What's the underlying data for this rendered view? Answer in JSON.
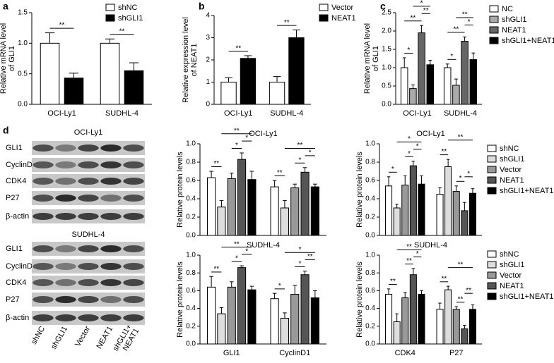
{
  "panel_labels": [
    "a",
    "b",
    "c",
    "d"
  ],
  "blot": {
    "sections": [
      {
        "title": "OCI-Ly1",
        "rows": [
          "GLI1",
          "CyclinD1",
          "CDK4",
          "P27",
          "β-actin"
        ]
      },
      {
        "title": "SUDHL-4",
        "rows": [
          "GLI1",
          "CyclinD1",
          "CDK4",
          "P27",
          "β-actin"
        ]
      }
    ],
    "lanes": [
      [
        "shNC"
      ],
      [
        "shGLI1"
      ],
      [
        "Vector"
      ],
      [
        "NEAT1"
      ],
      [
        "shGLI1+",
        "NEAT1"
      ]
    ]
  },
  "chart_data": [
    {
      "type": "bar",
      "y_label": [
        "Relative mRNA level",
        "of GLI1"
      ],
      "categories": [
        "OCI-Ly1",
        "SUDHL-4"
      ],
      "series": [
        {
          "name": "shNC",
          "color": "#ffffff",
          "values": [
            1.0,
            1.0
          ],
          "errors": [
            0.17,
            0.07
          ]
        },
        {
          "name": "shGLI1",
          "color": "#000000",
          "values": [
            0.43,
            0.55
          ],
          "errors": [
            0.08,
            0.13
          ]
        }
      ],
      "ylim": [
        0,
        1.5
      ],
      "yticks": [
        {
          "value": 0,
          "label": "0.0"
        },
        {
          "value": 0.5,
          "label": "0.5"
        },
        {
          "value": 1,
          "label": "1.0"
        },
        {
          "value": 1.5,
          "label": "1.5"
        }
      ],
      "legend": "upper right",
      "annotations": [
        "**",
        "**"
      ]
    },
    {
      "type": "bar",
      "y_label": [
        "Relative expression level",
        "of NEAT1"
      ],
      "categories": [
        "OCI-Ly1",
        "SUDHL-4"
      ],
      "series": [
        {
          "name": "Vector",
          "color": "#ffffff",
          "values": [
            1.0,
            1.0
          ],
          "errors": [
            0.2,
            0.25
          ]
        },
        {
          "name": "NEAT1",
          "color": "#000000",
          "values": [
            2.07,
            3.0
          ],
          "errors": [
            0.12,
            0.35
          ]
        }
      ],
      "ylim": [
        0,
        4
      ],
      "yticks": [
        0,
        1,
        2,
        3,
        4
      ],
      "legend": "upper right",
      "annotations": [
        "**",
        "**"
      ]
    },
    {
      "type": "bar",
      "y_label": [
        "Relative mRNA level",
        "of GLI1"
      ],
      "categories": [
        "OCI-Ly1",
        "SUDHL-4"
      ],
      "series": [
        {
          "name": "NC",
          "color": "#ffffff",
          "values": [
            1.0,
            1.0
          ],
          "errors": [
            0.27,
            0.1
          ]
        },
        {
          "name": "shGLI1",
          "color": "#aaaaaa",
          "values": [
            0.43,
            0.52
          ],
          "errors": [
            0.1,
            0.17
          ]
        },
        {
          "name": "NEAT1",
          "color": "#666666",
          "values": [
            1.95,
            1.72
          ],
          "errors": [
            0.2,
            0.12
          ]
        },
        {
          "name": "shGLI1+NEAT1",
          "color": "#000000",
          "values": [
            1.08,
            1.22
          ],
          "errors": [
            0.12,
            0.18
          ]
        }
      ],
      "ylim": [
        0,
        2.5
      ],
      "yticks": [
        {
          "value": 0,
          "label": "0.0"
        },
        {
          "value": 0.5,
          "label": "0.5"
        },
        {
          "value": 1,
          "label": "1.0"
        },
        {
          "value": 1.5,
          "label": "1.5"
        },
        {
          "value": 2,
          "label": "2.0"
        },
        {
          "value": 2.5,
          "label": "2.5"
        }
      ],
      "legend": "right",
      "annotations": [
        "*",
        "**",
        "**",
        "*",
        "*",
        "**",
        "*",
        "**"
      ]
    },
    {
      "type": "bar",
      "title": "OCI-Ly1",
      "y_label": [
        "Relative protein levels"
      ],
      "categories": [
        null,
        null
      ],
      "series": [
        {
          "color": "#ffffff",
          "values": [
            0.63,
            0.53
          ],
          "errors": [
            0.07,
            0.07
          ]
        },
        {
          "color": "#dddddd",
          "values": [
            0.31,
            0.3
          ],
          "errors": [
            0.07,
            0.08
          ]
        },
        {
          "color": "#999999",
          "values": [
            0.62,
            0.52
          ],
          "errors": [
            0.06,
            0.04
          ]
        },
        {
          "color": "#555555",
          "values": [
            0.83,
            0.69
          ],
          "errors": [
            0.07,
            0.05
          ]
        },
        {
          "color": "#000000",
          "values": [
            0.61,
            0.53
          ],
          "errors": [
            0.09,
            0.03
          ]
        }
      ],
      "ylim": [
        0,
        1
      ],
      "yticks": [
        {
          "value": 0,
          "label": "0.0"
        },
        {
          "value": 0.2,
          "label": "0.2"
        },
        {
          "value": 0.4,
          "label": "0.4"
        },
        {
          "value": 0.6,
          "label": "0.6"
        },
        {
          "value": 0.8,
          "label": "0.8"
        },
        {
          "value": 1,
          "label": "1.0"
        }
      ],
      "annotations": [
        "**",
        "*",
        "*",
        "**",
        "**",
        "*",
        "*",
        "**"
      ]
    },
    {
      "type": "bar",
      "title": "OCI-Ly1",
      "y_label": [
        "Relative protein levels"
      ],
      "categories": [
        null,
        null
      ],
      "series": [
        {
          "name": "shNC",
          "color": "#ffffff",
          "values": [
            0.54,
            0.45
          ],
          "errors": [
            0.1,
            0.07
          ]
        },
        {
          "name": "shGLI1",
          "color": "#dddddd",
          "values": [
            0.3,
            0.75
          ],
          "errors": [
            0.04,
            0.08
          ]
        },
        {
          "name": "Vector",
          "color": "#999999",
          "values": [
            0.55,
            0.48
          ],
          "errors": [
            0.1,
            0.06
          ]
        },
        {
          "name": "NEAT1",
          "color": "#555555",
          "values": [
            0.76,
            0.27
          ],
          "errors": [
            0.05,
            0.09
          ]
        },
        {
          "name": "shGLI1+NEAT1",
          "color": "#000000",
          "values": [
            0.56,
            0.46
          ],
          "errors": [
            0.09,
            0.05
          ]
        }
      ],
      "ylim": [
        0,
        1
      ],
      "yticks": [
        {
          "value": 0,
          "label": "0.0"
        },
        {
          "value": 0.2,
          "label": "0.2"
        },
        {
          "value": 0.4,
          "label": "0.4"
        },
        {
          "value": 0.6,
          "label": "0.6"
        },
        {
          "value": 0.8,
          "label": "0.8"
        },
        {
          "value": 1,
          "label": "1.0"
        }
      ],
      "legend": "right",
      "annotations": [
        "*",
        "*",
        "*",
        "*",
        "**",
        "*",
        "*",
        "**"
      ]
    },
    {
      "type": "bar",
      "title": "SUDHL-4",
      "y_label": [
        "Relative protein levels"
      ],
      "categories": [
        "GLI1",
        "CyclinD1"
      ],
      "series": [
        {
          "color": "#ffffff",
          "values": [
            0.64,
            0.51
          ],
          "errors": [
            0.12,
            0.06
          ]
        },
        {
          "color": "#dddddd",
          "values": [
            0.34,
            0.29
          ],
          "errors": [
            0.07,
            0.06
          ]
        },
        {
          "color": "#999999",
          "values": [
            0.64,
            0.56
          ],
          "errors": [
            0.06,
            0.1
          ]
        },
        {
          "color": "#555555",
          "values": [
            0.86,
            0.78
          ],
          "errors": [
            0.02,
            0.04
          ]
        },
        {
          "color": "#000000",
          "values": [
            0.61,
            0.52
          ],
          "errors": [
            0.04,
            0.08
          ]
        }
      ],
      "ylim": [
        0,
        1
      ],
      "yticks": [
        {
          "value": 0,
          "label": "0.0"
        },
        {
          "value": 0.2,
          "label": "0.2"
        },
        {
          "value": 0.4,
          "label": "0.4"
        },
        {
          "value": 0.6,
          "label": "0.6"
        },
        {
          "value": 0.8,
          "label": "0.8"
        },
        {
          "value": 1,
          "label": "1.0"
        }
      ],
      "annotations": [
        "**",
        "*",
        "*",
        "**",
        "*",
        "*",
        "**",
        "*"
      ]
    },
    {
      "type": "bar",
      "title": "SUDHL-4",
      "y_label": [
        "Relative protein levels"
      ],
      "categories": [
        "CDK4",
        "P27"
      ],
      "series": [
        {
          "name": "shNC",
          "color": "#ffffff",
          "values": [
            0.56,
            0.39
          ],
          "errors": [
            0.06,
            0.07
          ]
        },
        {
          "name": "shGLI1",
          "color": "#dddddd",
          "values": [
            0.25,
            0.61
          ],
          "errors": [
            0.09,
            0.04
          ]
        },
        {
          "name": "Vector",
          "color": "#999999",
          "values": [
            0.52,
            0.39
          ],
          "errors": [
            0.06,
            0.03
          ]
        },
        {
          "name": "NEAT1",
          "color": "#555555",
          "values": [
            0.78,
            0.17
          ],
          "errors": [
            0.07,
            0.04
          ]
        },
        {
          "name": "shGLI1+NEAT1",
          "color": "#000000",
          "values": [
            0.56,
            0.39
          ],
          "errors": [
            0.04,
            0.05
          ]
        }
      ],
      "ylim": [
        0,
        1
      ],
      "yticks": [
        {
          "value": 0,
          "label": "0.0"
        },
        {
          "value": 0.2,
          "label": "0.2"
        },
        {
          "value": 0.4,
          "label": "0.4"
        },
        {
          "value": 0.6,
          "label": "0.6"
        },
        {
          "value": 0.8,
          "label": "0.8"
        },
        {
          "value": 1,
          "label": "1.0"
        }
      ],
      "legend": "right",
      "annotations": [
        "**",
        "**",
        "*",
        "**",
        "**",
        "**",
        "**",
        "**"
      ]
    }
  ]
}
